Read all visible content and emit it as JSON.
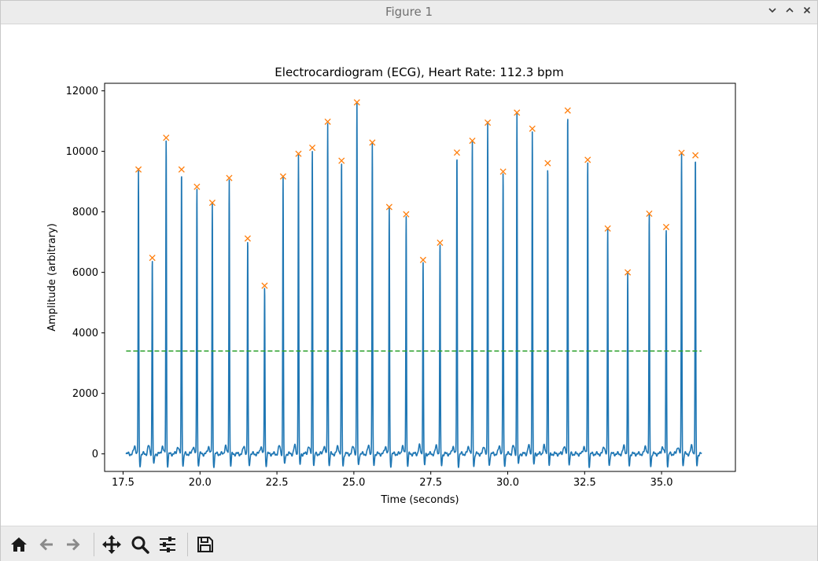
{
  "window": {
    "title": "Figure 1",
    "buttons": [
      "minimize",
      "maximize",
      "close"
    ]
  },
  "toolbar": {
    "items": [
      "home-icon",
      "back-icon",
      "forward-icon",
      "pan-icon",
      "zoom-icon",
      "configure-subplots-icon",
      "save-icon"
    ]
  },
  "colors": {
    "signal": "#1f77b4",
    "peaks": "#ff7f0e",
    "threshold": "#2ca02c"
  },
  "chart_data": {
    "type": "line",
    "title": "Electrocardiogram (ECG), Heart Rate: 112.3 bpm",
    "xlabel": "Time (seconds)",
    "ylabel": "Amplitude (arbitrary)",
    "xlim": [
      16.9,
      37.4
    ],
    "ylim": [
      -580,
      12250
    ],
    "xticks": [
      17.5,
      20.0,
      22.5,
      25.0,
      27.5,
      30.0,
      32.5,
      35.0
    ],
    "xtick_labels": [
      "17.5",
      "20.0",
      "22.5",
      "25.0",
      "27.5",
      "30.0",
      "32.5",
      "35.0"
    ],
    "yticks": [
      0,
      2000,
      4000,
      6000,
      8000,
      10000,
      12000
    ],
    "ytick_labels": [
      "0",
      "2000",
      "4000",
      "6000",
      "8000",
      "10000",
      "12000"
    ],
    "signal_range": [
      17.6,
      36.3
    ],
    "threshold": 3400,
    "series": [
      {
        "kind": "signal"
      },
      {
        "kind": "peaks",
        "x": [
          18.0,
          18.45,
          18.9,
          19.4,
          19.9,
          20.4,
          20.95,
          21.55,
          22.1,
          22.7,
          23.2,
          23.65,
          24.15,
          24.6,
          25.1,
          25.6,
          26.15,
          26.7,
          27.25,
          27.8,
          28.35,
          28.85,
          29.35,
          29.85,
          30.3,
          30.8,
          31.3,
          31.95,
          32.6,
          33.25,
          33.9,
          34.6,
          35.15,
          35.65,
          36.1
        ],
        "y": [
          9400,
          6480,
          10450,
          9400,
          8830,
          8300,
          9120,
          7120,
          5560,
          9170,
          9920,
          10120,
          10980,
          9690,
          11620,
          10290,
          8160,
          7920,
          6410,
          6980,
          9960,
          10350,
          10950,
          9330,
          11280,
          10750,
          9610,
          11350,
          9720,
          7450,
          6000,
          7940,
          7500,
          9950,
          9870
        ]
      },
      {
        "kind": "threshold"
      }
    ]
  }
}
